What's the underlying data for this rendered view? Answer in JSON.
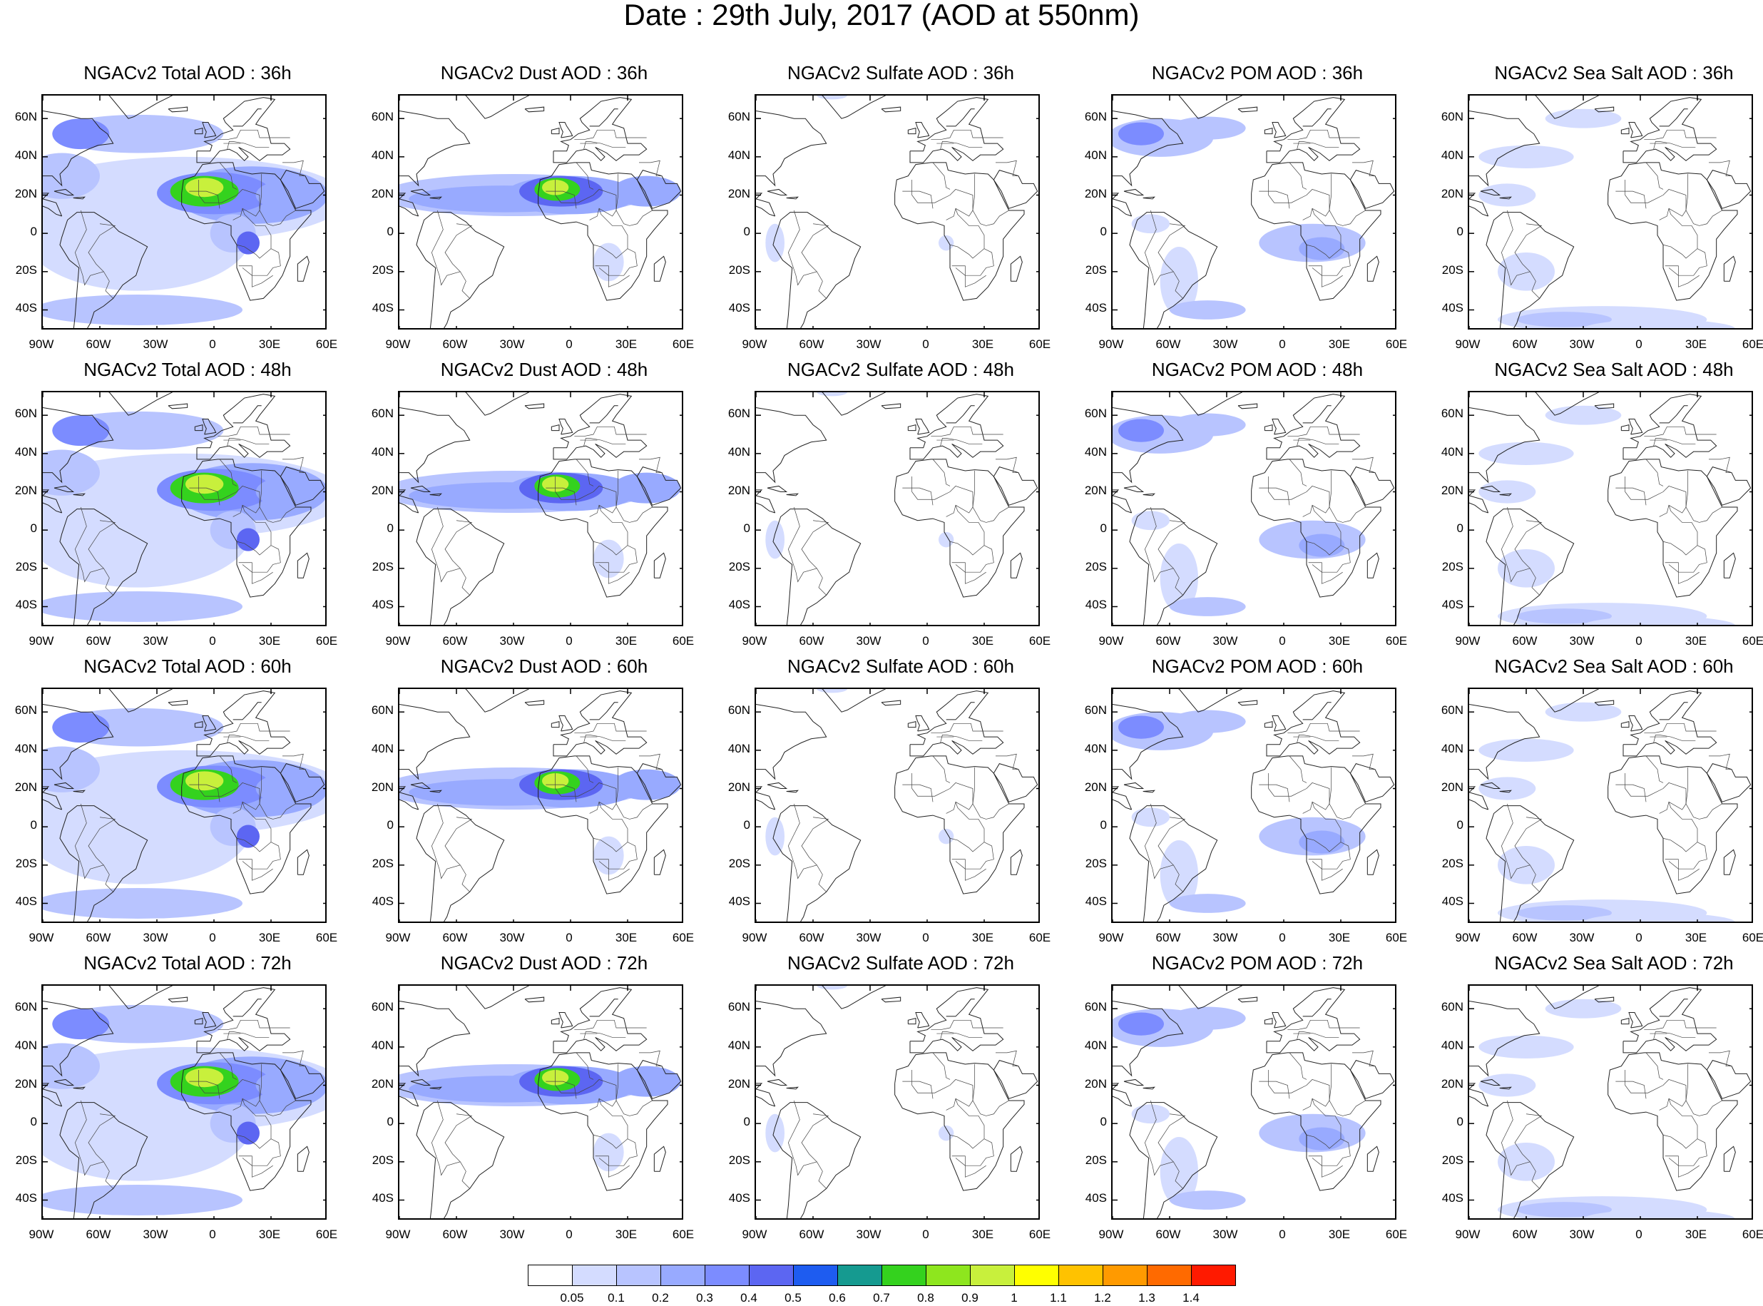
{
  "title": "Date : 29th July, 2017 (AOD at 550nm)",
  "lat_labels": [
    "60N",
    "40N",
    "20N",
    "0",
    "20S",
    "40S"
  ],
  "lon_labels": [
    "90W",
    "60W",
    "30W",
    "0",
    "30E",
    "60E"
  ],
  "colorbar": {
    "labels": [
      "0.05",
      "0.1",
      "0.2",
      "0.3",
      "0.4",
      "0.5",
      "0.6",
      "0.7",
      "0.8",
      "0.9",
      "1",
      "1.1",
      "1.2",
      "1.3",
      "1.4"
    ],
    "colors": [
      "#ffffff",
      "#d4dcff",
      "#b8c4ff",
      "#98aaff",
      "#7c8cff",
      "#5c66f2",
      "#1e5cf0",
      "#159a90",
      "#34d21e",
      "#8ee61e",
      "#c8f03c",
      "#ffff00",
      "#ffc200",
      "#ff9a00",
      "#ff6a00",
      "#ff1a00"
    ]
  },
  "rows": [
    {
      "hour": "36h",
      "panels": [
        {
          "title": "NGACv2 Total AOD : 36h",
          "species": "total"
        },
        {
          "title": "NGACv2 Dust AOD : 36h",
          "species": "dust"
        },
        {
          "title": "NGACv2 Sulfate AOD : 36h",
          "species": "sulfate"
        },
        {
          "title": "NGACv2 POM AOD : 36h",
          "species": "pom"
        },
        {
          "title": "NGACv2 Sea Salt AOD : 36h",
          "species": "seasalt"
        }
      ]
    },
    {
      "hour": "48h",
      "panels": [
        {
          "title": "NGACv2 Total AOD : 48h",
          "species": "total"
        },
        {
          "title": "NGACv2 Dust AOD : 48h",
          "species": "dust"
        },
        {
          "title": "NGACv2 Sulfate AOD : 48h",
          "species": "sulfate"
        },
        {
          "title": "NGACv2 POM AOD : 48h",
          "species": "pom"
        },
        {
          "title": "NGACv2 Sea Salt AOD : 48h",
          "species": "seasalt"
        }
      ]
    },
    {
      "hour": "60h",
      "panels": [
        {
          "title": "NGACv2 Total AOD : 60h",
          "species": "total"
        },
        {
          "title": "NGACv2 Dust AOD : 60h",
          "species": "dust"
        },
        {
          "title": "NGACv2 Sulfate AOD : 60h",
          "species": "sulfate"
        },
        {
          "title": "NGACv2 POM AOD : 60h",
          "species": "pom"
        },
        {
          "title": "NGACv2 Sea Salt AOD : 60h",
          "species": "seasalt"
        }
      ]
    },
    {
      "hour": "72h",
      "panels": [
        {
          "title": "NGACv2 Total AOD : 72h",
          "species": "total"
        },
        {
          "title": "NGACv2 Dust AOD : 72h",
          "species": "dust"
        },
        {
          "title": "NGACv2 Sulfate AOD : 72h",
          "species": "sulfate"
        },
        {
          "title": "NGACv2 POM AOD : 72h",
          "species": "pom"
        },
        {
          "title": "NGACv2 Sea Salt  AOD : 72h",
          "species": "seasalt"
        }
      ]
    }
  ]
}
